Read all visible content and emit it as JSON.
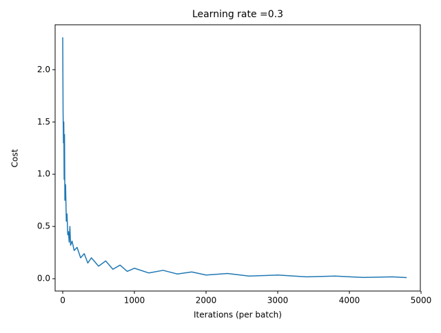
{
  "chart_data": {
    "type": "line",
    "title": "Learning rate =0.3",
    "x_label": "Iterations (per batch)",
    "y_label": "Cost",
    "x": [
      0,
      5,
      10,
      15,
      20,
      25,
      30,
      40,
      50,
      60,
      70,
      80,
      90,
      100,
      110,
      130,
      160,
      200,
      250,
      300,
      350,
      400,
      500,
      600,
      700,
      800,
      900,
      1000,
      1200,
      1400,
      1600,
      1800,
      2000,
      2300,
      2600,
      3000,
      3400,
      3800,
      4200,
      4600,
      4800
    ],
    "series": [
      {
        "color": "#1f77b4",
        "values": [
          2.31,
          1.6,
          1.3,
          1.5,
          0.95,
          1.38,
          0.75,
          0.9,
          0.55,
          0.62,
          0.42,
          0.45,
          0.35,
          0.5,
          0.32,
          0.36,
          0.27,
          0.3,
          0.2,
          0.24,
          0.15,
          0.2,
          0.12,
          0.17,
          0.09,
          0.13,
          0.07,
          0.1,
          0.055,
          0.08,
          0.045,
          0.065,
          0.035,
          0.05,
          0.025,
          0.035,
          0.018,
          0.025,
          0.012,
          0.018,
          0.01
        ]
      }
    ],
    "xlim": [
      -106,
      4990
    ],
    "ylim": [
      -0.118,
      2.43
    ],
    "xticks": [
      0,
      1000,
      2000,
      3000,
      4000,
      5000
    ],
    "yticks": [
      {
        "value": 0,
        "label": "0.0"
      },
      0.5,
      {
        "value": 1,
        "label": "1.0"
      },
      1.5,
      {
        "value": 2,
        "label": "2.0"
      }
    ]
  }
}
